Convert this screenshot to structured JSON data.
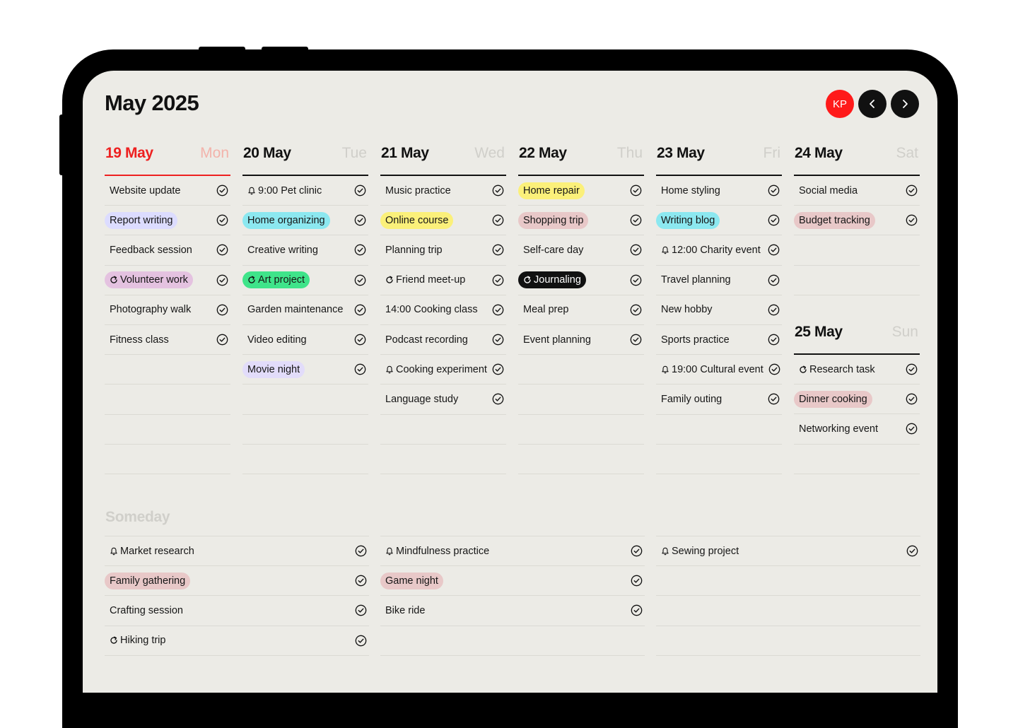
{
  "header": {
    "title": "May 2025",
    "avatar_initials": "KP",
    "prev_icon": "chevron-left-icon",
    "next_icon": "chevron-right-icon"
  },
  "colors": {
    "accent_red": "#ee2020",
    "blue": "#dcdcff",
    "cyan": "#8ce8f0",
    "yellow": "#fbf07a",
    "green": "#3fe48a",
    "rose": "#e8c8c8",
    "pink": "#e4c2e0",
    "lavender": "#e2dcfa",
    "black": "#111111"
  },
  "days": [
    {
      "date": "19 May",
      "weekday": "Mon",
      "today": true,
      "tasks": [
        {
          "text": "Website update"
        },
        {
          "text": "Report writing",
          "tag": "blue"
        },
        {
          "text": "Feedback session"
        },
        {
          "text": "Volunteer work",
          "tag": "pink",
          "icon": "repeat"
        },
        {
          "text": "Photography walk"
        },
        {
          "text": "Fitness class"
        }
      ],
      "blank_rows": 4
    },
    {
      "date": "20 May",
      "weekday": "Tue",
      "tasks": [
        {
          "text": "9:00 Pet clinic",
          "icon": "bell"
        },
        {
          "text": "Home organizing",
          "tag": "cyan"
        },
        {
          "text": "Creative writing"
        },
        {
          "text": "Art project",
          "tag": "green",
          "icon": "repeat"
        },
        {
          "text": "Garden maintenance"
        },
        {
          "text": "Video editing"
        },
        {
          "text": "Movie night",
          "tag": "lavender"
        }
      ],
      "blank_rows": 3
    },
    {
      "date": "21 May",
      "weekday": "Wed",
      "tasks": [
        {
          "text": "Music practice"
        },
        {
          "text": "Online course",
          "tag": "yellow"
        },
        {
          "text": "Planning trip"
        },
        {
          "text": "Friend meet-up",
          "icon": "repeat"
        },
        {
          "text": "14:00 Cooking class"
        },
        {
          "text": "Podcast recording"
        },
        {
          "text": "Cooking experiment",
          "icon": "bell"
        },
        {
          "text": "Language study"
        }
      ],
      "blank_rows": 2
    },
    {
      "date": "22 May",
      "weekday": "Thu",
      "tasks": [
        {
          "text": "Home repair",
          "tag": "yellow"
        },
        {
          "text": "Shopping trip",
          "tag": "rose"
        },
        {
          "text": "Self-care day"
        },
        {
          "text": "Journaling",
          "tag": "black",
          "icon": "repeat"
        },
        {
          "text": "Meal prep"
        },
        {
          "text": "Event planning"
        }
      ],
      "blank_rows": 4
    },
    {
      "date": "23 May",
      "weekday": "Fri",
      "tasks": [
        {
          "text": "Home styling"
        },
        {
          "text": "Writing blog",
          "tag": "cyan"
        },
        {
          "text": "12:00 Charity event",
          "icon": "bell"
        },
        {
          "text": "Travel planning"
        },
        {
          "text": "New hobby"
        },
        {
          "text": "Sports practice"
        },
        {
          "text": "19:00 Cultural event",
          "icon": "bell"
        },
        {
          "text": "Family outing"
        }
      ],
      "blank_rows": 2
    },
    {
      "date": "24 May",
      "weekday": "Sat",
      "tasks": [
        {
          "text": "Social media"
        },
        {
          "text": "Budget tracking",
          "tag": "rose"
        }
      ],
      "blank_rows": 2
    },
    {
      "date": "25 May",
      "weekday": "Sun",
      "tasks": [
        {
          "text": "Research task",
          "icon": "repeat"
        },
        {
          "text": "Dinner cooking",
          "tag": "rose"
        },
        {
          "text": "Networking event"
        }
      ],
      "blank_rows": 1
    }
  ],
  "someday": {
    "title": "Someday",
    "columns": [
      {
        "tasks": [
          {
            "text": "Market research",
            "icon": "bell"
          },
          {
            "text": "Family gathering",
            "tag": "rose"
          },
          {
            "text": "Crafting session"
          },
          {
            "text": "Hiking trip",
            "icon": "repeat"
          }
        ],
        "blank_rows": 0
      },
      {
        "tasks": [
          {
            "text": "Mindfulness practice",
            "icon": "bell"
          },
          {
            "text": "Game night",
            "tag": "rose"
          },
          {
            "text": "Bike ride"
          }
        ],
        "blank_rows": 1
      },
      {
        "tasks": [
          {
            "text": "Sewing project",
            "icon": "bell"
          }
        ],
        "blank_rows": 3
      }
    ]
  }
}
